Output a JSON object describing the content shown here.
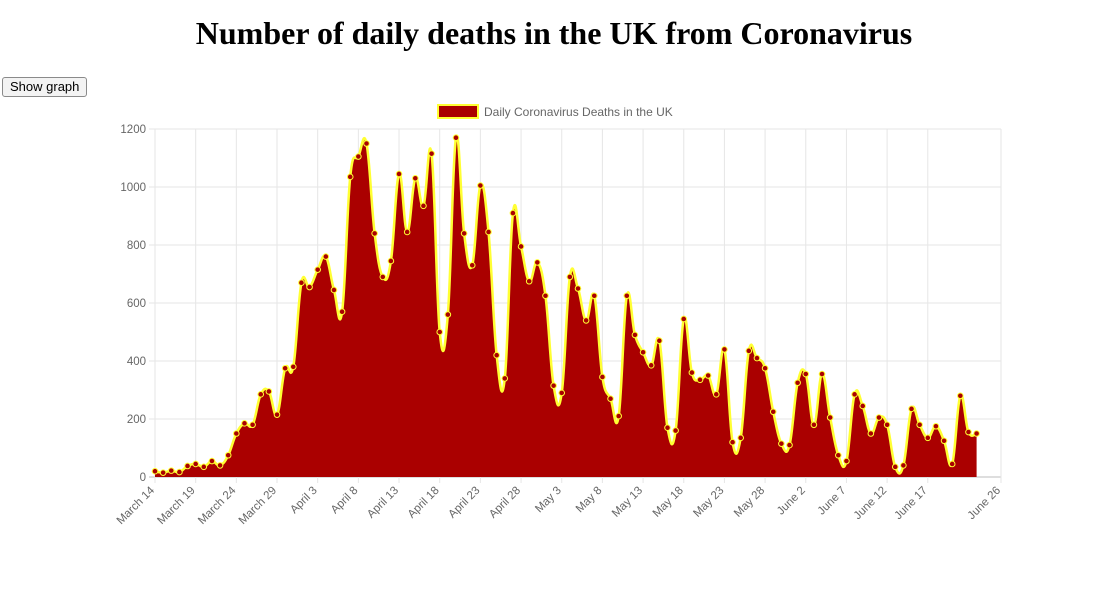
{
  "page": {
    "title": "Number of daily deaths in the UK from Coronavirus",
    "button_label": "Show graph"
  },
  "chart_data": {
    "type": "area",
    "x_start": "March 14",
    "x_end": "June 26",
    "x_tick_labels": [
      "March 14",
      "March 19",
      "March 24",
      "March 29",
      "April 3",
      "April 8",
      "April 13",
      "April 18",
      "April 23",
      "April 28",
      "May 3",
      "May 8",
      "May 13",
      "May 18",
      "May 23",
      "May 28",
      "June 2",
      "June 7",
      "June 12",
      "June 17",
      "June 26"
    ],
    "x_tick_positions": [
      "March 14",
      "March 19",
      "March 24",
      "March 29",
      "April 3",
      "April 8",
      "April 13",
      "April 18",
      "April 23",
      "April 28",
      "May 3",
      "May 8",
      "May 13",
      "May 18",
      "May 23",
      "May 28",
      "June 2",
      "June 7",
      "June 12",
      "June 17",
      "June 26"
    ],
    "y_ticks": [
      0,
      200,
      400,
      600,
      800,
      1000,
      1200
    ],
    "ylim": [
      0,
      1200
    ],
    "grid": true,
    "legend_position": "top",
    "series": [
      {
        "name": "Daily Coronavirus Deaths in the UK",
        "fill_color": "#aa0000",
        "line_color": "#ffff33",
        "point_color": "#aa0000",
        "point_border_color": "#ffff33",
        "values": [
          20,
          15,
          22,
          17,
          38,
          45,
          35,
          55,
          40,
          75,
          150,
          185,
          180,
          285,
          295,
          215,
          375,
          380,
          670,
          655,
          715,
          760,
          645,
          570,
          1035,
          1105,
          1150,
          840,
          690,
          745,
          1045,
          845,
          1030,
          935,
          1115,
          500,
          560,
          1170,
          840,
          730,
          1005,
          845,
          420,
          340,
          910,
          795,
          675,
          740,
          625,
          315,
          290,
          690,
          650,
          540,
          625,
          345,
          270,
          210,
          625,
          490,
          430,
          385,
          470,
          170,
          160,
          545,
          360,
          335,
          350,
          285,
          440,
          120,
          135,
          435,
          410,
          375,
          225,
          115,
          110,
          325,
          355,
          180,
          355,
          205,
          75,
          55,
          285,
          245,
          150,
          205,
          180,
          35,
          40,
          235,
          180,
          135,
          175,
          125,
          45,
          280,
          155,
          150
        ]
      }
    ]
  }
}
